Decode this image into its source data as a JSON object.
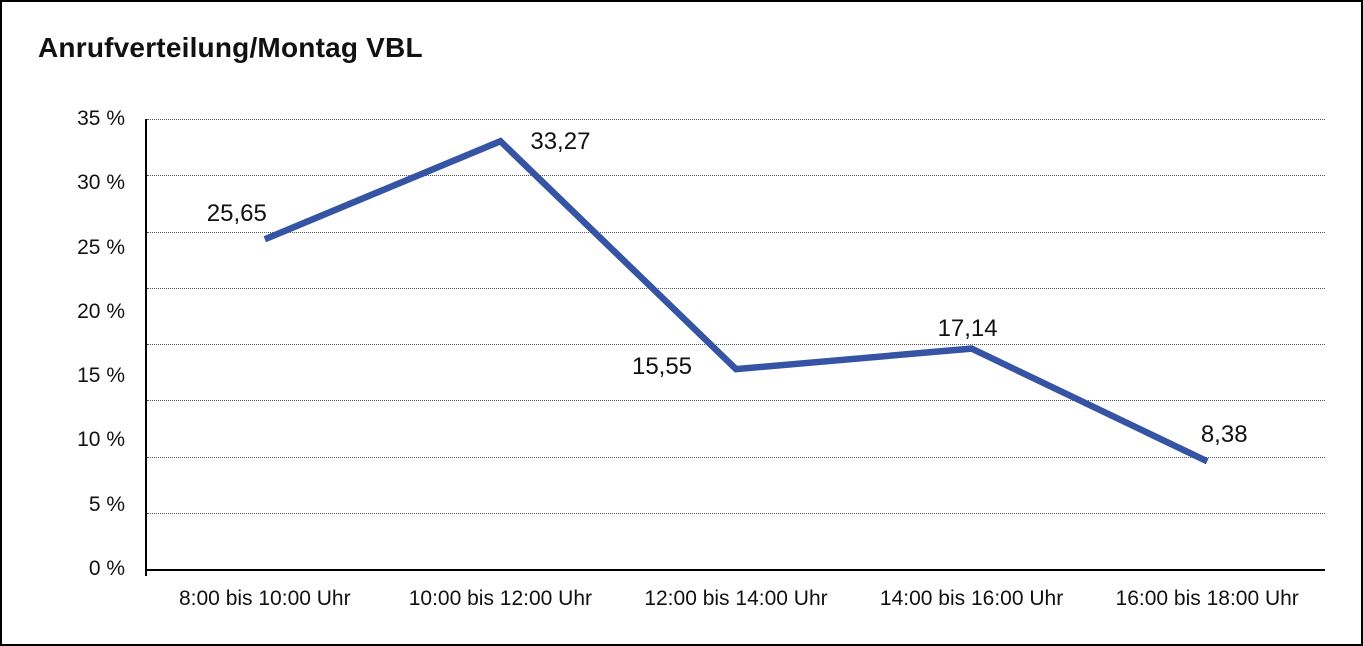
{
  "window": {
    "background_color": "#ffffff",
    "border_color": "#000000"
  },
  "chart_data": {
    "type": "line",
    "title": "Anrufverteilung/Montag VBL",
    "categories": [
      "8:00 bis 10:00 Uhr",
      "10:00 bis 12:00 Uhr",
      "12:00 bis 14:00 Uhr",
      "14:00 bis 16:00 Uhr",
      "16:00 bis 18:00 Uhr"
    ],
    "values": [
      25.65,
      33.27,
      15.55,
      17.14,
      8.38
    ],
    "point_labels": [
      "25,65",
      "33,27",
      "15,55",
      "17,14",
      "8,38"
    ],
    "y_tick_labels": [
      "35 %",
      "30 %",
      "25 %",
      "20 %",
      "15 %",
      "10 %",
      "5 %",
      "0 %"
    ],
    "ylim": [
      0,
      35
    ],
    "y_tick_step": 5,
    "xlabel": "",
    "ylabel": "",
    "legend": "none",
    "grid": "horizontal-dotted",
    "line_color": "#3554a4",
    "grid_color": "#555555",
    "axis_color": "#000000",
    "text_color": "#111111"
  }
}
